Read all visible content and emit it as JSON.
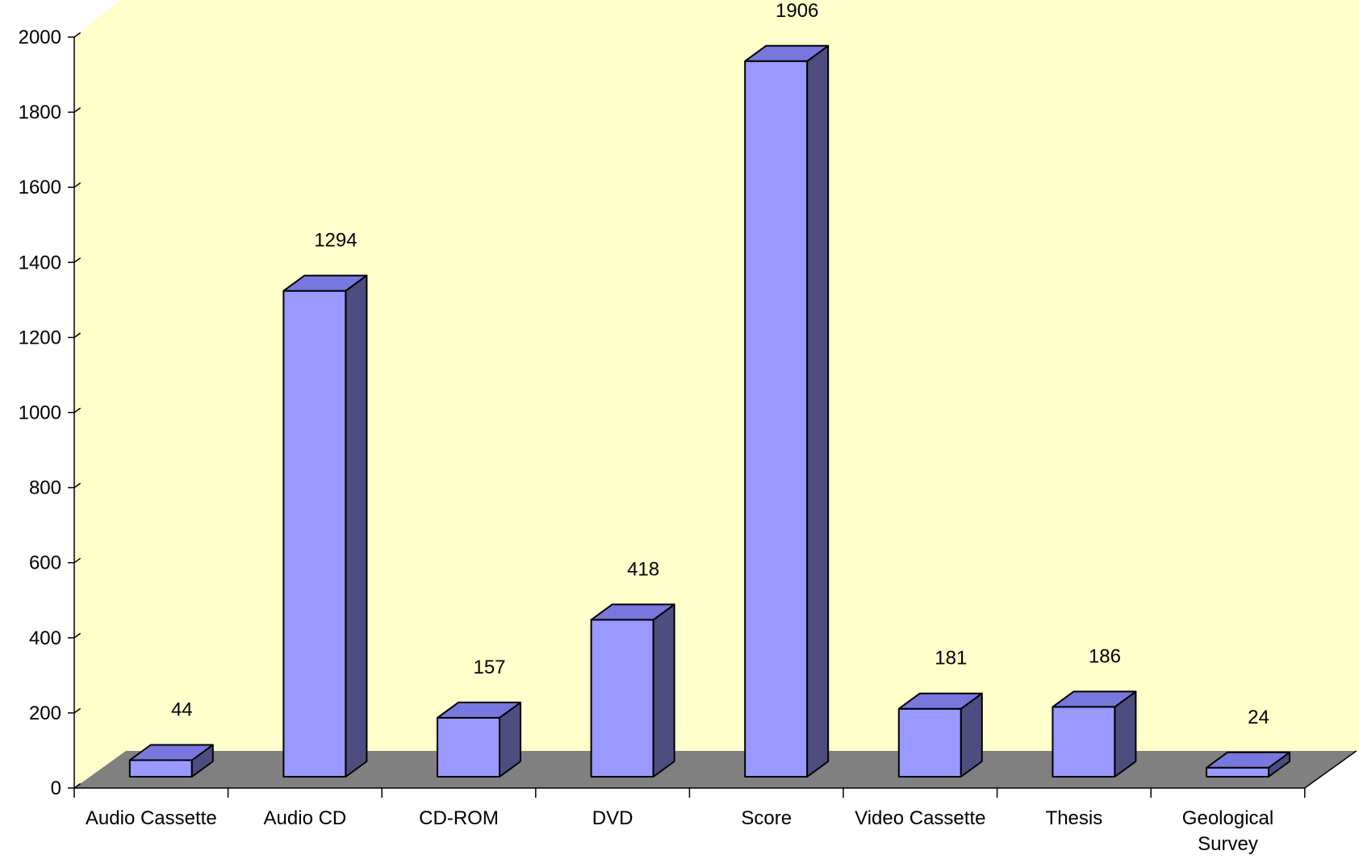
{
  "chart_data": {
    "type": "bar",
    "categories": [
      [
        "Audio Cassette"
      ],
      [
        "Audio CD"
      ],
      [
        "CD-ROM"
      ],
      [
        "DVD"
      ],
      [
        "Score"
      ],
      [
        "Video Cassette"
      ],
      [
        "Thesis"
      ],
      [
        "Geological",
        "Survey"
      ]
    ],
    "values": [
      44,
      1294,
      157,
      418,
      1906,
      181,
      186,
      24
    ],
    "y_ticks": [
      "0",
      "200",
      "400",
      "600",
      "800",
      "1000",
      "1200",
      "1400",
      "1600",
      "1800",
      "2000"
    ],
    "ylim": [
      0,
      2000
    ],
    "title": "",
    "xlabel": "",
    "ylabel": "",
    "three_d": true,
    "data_labels": true,
    "grid": false,
    "legend": "none",
    "colors": {
      "bar_front": "#9999FF",
      "bar_top": "#7777DD",
      "bar_side": "#4D4D80",
      "wall": "#FFFFCC",
      "floor": "#808080",
      "axis": "#000000"
    }
  }
}
